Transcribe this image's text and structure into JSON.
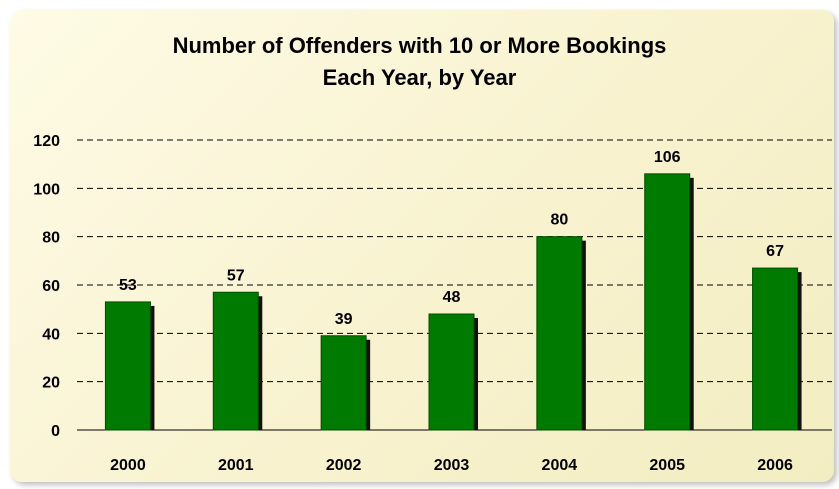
{
  "chart_data": {
    "type": "bar",
    "title": "Number of Offenders with 10 or More Bookings",
    "subtitle": "Each Year, by Year",
    "categories": [
      "2000",
      "2001",
      "2002",
      "2003",
      "2004",
      "2005",
      "2006"
    ],
    "values": [
      53,
      57,
      39,
      48,
      80,
      106,
      67
    ],
    "yticks": [
      "0",
      "20",
      "40",
      "60",
      "80",
      "100",
      "120"
    ],
    "ylim": [
      0,
      120
    ],
    "xlabel": "",
    "ylabel": "",
    "grid": true,
    "bar_color": "#007a00",
    "bar_shadow_color": "#111111",
    "background_color": "#faf5d6"
  }
}
